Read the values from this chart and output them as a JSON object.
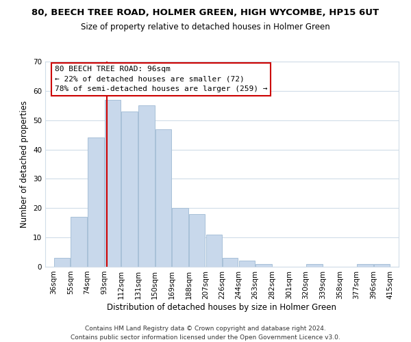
{
  "title": "80, BEECH TREE ROAD, HOLMER GREEN, HIGH WYCOMBE, HP15 6UT",
  "subtitle": "Size of property relative to detached houses in Holmer Green",
  "xlabel": "Distribution of detached houses by size in Holmer Green",
  "ylabel": "Number of detached properties",
  "bar_color": "#c8d8eb",
  "bar_edge_color": "#a8c0d8",
  "vline_x": 96,
  "vline_color": "#cc0000",
  "annotation_line1": "80 BEECH TREE ROAD: 96sqm",
  "annotation_line2": "← 22% of detached houses are smaller (72)",
  "annotation_line3": "78% of semi-detached houses are larger (259) →",
  "annotation_box_facecolor": "white",
  "annotation_box_edgecolor": "#cc0000",
  "bins": [
    36,
    55,
    74,
    93,
    112,
    131,
    150,
    169,
    188,
    207,
    226,
    244,
    263,
    282,
    301,
    320,
    339,
    358,
    377,
    396,
    415
  ],
  "counts": [
    3,
    17,
    44,
    57,
    53,
    55,
    47,
    20,
    18,
    11,
    3,
    2,
    1,
    0,
    0,
    1,
    0,
    0,
    1,
    1
  ],
  "ylim": [
    0,
    70
  ],
  "yticks": [
    0,
    10,
    20,
    30,
    40,
    50,
    60,
    70
  ],
  "grid_color": "#d0dce8",
  "background_color": "white",
  "plot_bg_color": "white",
  "footer_line1": "Contains HM Land Registry data © Crown copyright and database right 2024.",
  "footer_line2": "Contains public sector information licensed under the Open Government Licence v3.0.",
  "title_fontsize": 9.5,
  "subtitle_fontsize": 8.5,
  "footer_fontsize": 6.5,
  "axis_label_fontsize": 8.5,
  "tick_fontsize": 7.5,
  "annotation_fontsize": 8
}
